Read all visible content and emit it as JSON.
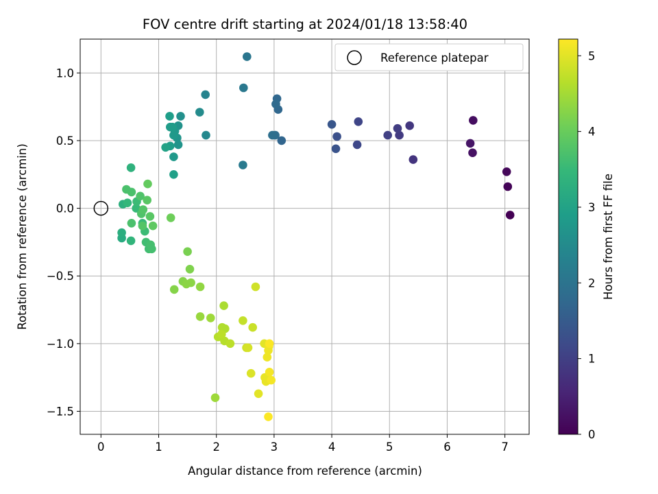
{
  "chart_data": {
    "type": "scatter",
    "title": "FOV centre drift starting at 2024/01/18 13:58:40",
    "xlabel": "Angular distance from reference (arcmin)",
    "ylabel": "Rotation from reference (arcmin)",
    "xlim": [
      -0.36,
      7.42
    ],
    "ylim": [
      -1.67,
      1.25
    ],
    "xticks": [
      0,
      1,
      2,
      3,
      4,
      5,
      6,
      7
    ],
    "xtick_labels": [
      "0",
      "1",
      "2",
      "3",
      "4",
      "5",
      "6",
      "7"
    ],
    "yticks": [
      -1.5,
      -1.0,
      -0.5,
      0.0,
      0.5,
      1.0
    ],
    "ytick_labels": [
      "−1.5",
      "−1.0",
      "−0.5",
      "0.0",
      "0.5",
      "1.0"
    ],
    "grid": true,
    "legend": {
      "position": "top-right",
      "label": "Reference platepar"
    },
    "reference": {
      "x": 0,
      "y": 0
    },
    "colorbar": {
      "label": "Hours from first FF file",
      "min": 0,
      "max": 5.22,
      "ticks": [
        0,
        1,
        2,
        3,
        4,
        5
      ],
      "tick_labels": [
        "0",
        "1",
        "2",
        "3",
        "4",
        "5"
      ],
      "colormap": "viridis",
      "stops": [
        "#440154",
        "#482777",
        "#3e4989",
        "#31688e",
        "#26828e",
        "#1f9e89",
        "#35b779",
        "#6ece58",
        "#b5de2b",
        "#fde725"
      ]
    },
    "points": [
      [
        7.09,
        -0.05,
        0.0
      ],
      [
        7.05,
        0.16,
        0.05
      ],
      [
        7.03,
        0.27,
        0.1
      ],
      [
        6.45,
        0.65,
        0.2
      ],
      [
        6.44,
        0.41,
        0.25
      ],
      [
        6.4,
        0.48,
        0.3
      ],
      [
        5.41,
        0.36,
        0.8
      ],
      [
        5.35,
        0.61,
        0.85
      ],
      [
        5.17,
        0.54,
        0.9
      ],
      [
        5.14,
        0.59,
        0.95
      ],
      [
        4.97,
        0.54,
        1.0
      ],
      [
        4.46,
        0.64,
        1.1
      ],
      [
        4.44,
        0.47,
        1.15
      ],
      [
        4.09,
        0.53,
        1.3
      ],
      [
        4.07,
        0.44,
        1.35
      ],
      [
        4.0,
        0.62,
        1.4
      ],
      [
        3.13,
        0.5,
        1.7
      ],
      [
        3.07,
        0.73,
        1.75
      ],
      [
        3.05,
        0.81,
        1.75
      ],
      [
        3.03,
        0.77,
        1.8
      ],
      [
        3.02,
        0.54,
        1.85
      ],
      [
        2.97,
        0.54,
        1.9
      ],
      [
        2.53,
        1.12,
        2.05
      ],
      [
        2.47,
        0.89,
        2.1
      ],
      [
        2.46,
        0.32,
        2.15
      ],
      [
        1.81,
        0.84,
        2.35
      ],
      [
        1.82,
        0.54,
        2.45
      ],
      [
        1.71,
        0.71,
        2.5
      ],
      [
        1.38,
        0.68,
        2.6
      ],
      [
        1.34,
        0.61,
        2.65
      ],
      [
        1.34,
        0.47,
        2.7
      ],
      [
        1.32,
        0.52,
        2.7
      ],
      [
        1.28,
        0.57,
        2.75
      ],
      [
        1.26,
        0.38,
        2.8
      ],
      [
        1.26,
        0.54,
        2.8
      ],
      [
        1.24,
        0.6,
        2.85
      ],
      [
        1.2,
        0.6,
        2.85
      ],
      [
        1.19,
        0.68,
        2.9
      ],
      [
        1.2,
        0.46,
        2.9
      ],
      [
        1.26,
        0.25,
        2.95
      ],
      [
        1.12,
        0.45,
        3.0
      ],
      [
        0.36,
        -0.22,
        3.2
      ],
      [
        0.36,
        -0.18,
        3.25
      ],
      [
        0.38,
        0.03,
        3.3
      ],
      [
        0.52,
        0.3,
        3.35
      ],
      [
        0.52,
        -0.24,
        3.4
      ],
      [
        0.46,
        0.04,
        3.45
      ],
      [
        0.61,
        0.0,
        3.5
      ],
      [
        0.72,
        -0.11,
        3.5
      ],
      [
        0.62,
        0.05,
        3.55
      ],
      [
        0.76,
        -0.17,
        3.55
      ],
      [
        0.78,
        -0.25,
        3.6
      ],
      [
        0.83,
        -0.3,
        3.6
      ],
      [
        0.86,
        -0.27,
        3.65
      ],
      [
        0.88,
        -0.3,
        3.65
      ],
      [
        0.53,
        0.12,
        3.7
      ],
      [
        0.53,
        -0.11,
        3.7
      ],
      [
        0.44,
        0.14,
        3.7
      ],
      [
        0.68,
        0.09,
        3.75
      ],
      [
        0.7,
        -0.04,
        3.75
      ],
      [
        0.72,
        -0.13,
        3.8
      ],
      [
        0.73,
        -0.01,
        3.8
      ],
      [
        0.8,
        0.06,
        3.85
      ],
      [
        0.85,
        -0.06,
        3.85
      ],
      [
        0.9,
        -0.13,
        3.9
      ],
      [
        0.81,
        0.18,
        3.95
      ],
      [
        1.21,
        -0.07,
        4.05
      ],
      [
        1.5,
        -0.32,
        4.15
      ],
      [
        1.54,
        -0.45,
        4.2
      ],
      [
        1.27,
        -0.6,
        4.25
      ],
      [
        1.42,
        -0.54,
        4.25
      ],
      [
        1.48,
        -0.56,
        4.3
      ],
      [
        1.56,
        -0.55,
        4.3
      ],
      [
        1.72,
        -0.58,
        4.35
      ],
      [
        1.72,
        -0.8,
        4.4
      ],
      [
        1.9,
        -0.81,
        4.45
      ],
      [
        1.98,
        -1.4,
        4.45
      ],
      [
        2.13,
        -0.72,
        4.55
      ],
      [
        2.1,
        -0.88,
        4.6
      ],
      [
        2.15,
        -0.89,
        4.6
      ],
      [
        2.03,
        -0.95,
        4.65
      ],
      [
        2.14,
        -0.98,
        4.65
      ],
      [
        2.24,
        -1.0,
        4.7
      ],
      [
        2.09,
        -0.93,
        4.7
      ],
      [
        2.46,
        -0.83,
        4.75
      ],
      [
        2.63,
        -0.88,
        4.8
      ],
      [
        2.68,
        -0.58,
        4.85
      ],
      [
        2.52,
        -1.03,
        4.85
      ],
      [
        2.55,
        -1.03,
        4.9
      ],
      [
        2.6,
        -1.22,
        4.95
      ],
      [
        2.73,
        -1.37,
        5.0
      ],
      [
        2.83,
        -1.0,
        5.0
      ],
      [
        2.84,
        -1.25,
        5.05
      ],
      [
        2.86,
        -1.28,
        5.05
      ],
      [
        2.88,
        -1.1,
        5.1
      ],
      [
        2.9,
        -1.05,
        5.1
      ],
      [
        2.91,
        -1.02,
        5.1
      ],
      [
        2.92,
        -1.21,
        5.15
      ],
      [
        2.95,
        -1.27,
        5.15
      ],
      [
        2.9,
        -1.54,
        5.2
      ],
      [
        2.92,
        -1.0,
        5.2
      ]
    ]
  }
}
